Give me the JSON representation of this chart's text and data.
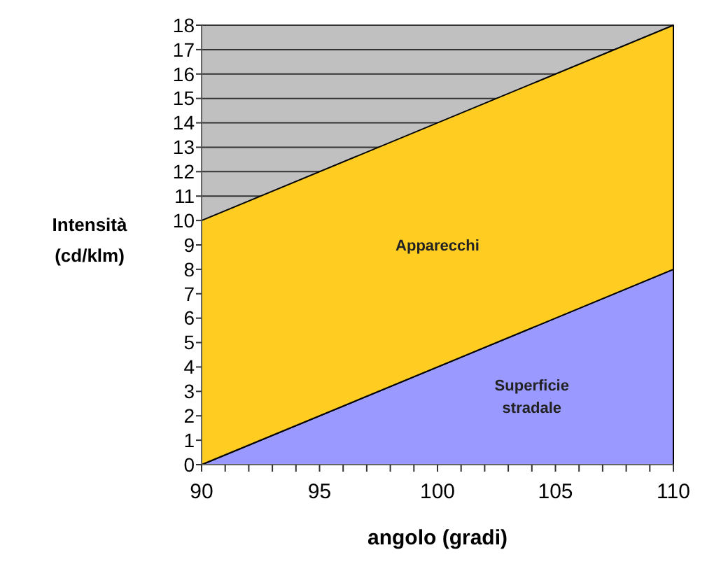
{
  "chart_data": {
    "type": "area",
    "stacked": true,
    "xlabel": "angolo (gradi)",
    "ylabel": "Intensità (cd/klm)",
    "x": [
      90,
      110
    ],
    "series": [
      {
        "name": "Superficie stradale",
        "color": "#9999ff",
        "values": [
          0,
          8
        ]
      },
      {
        "name": "Apparecchi",
        "color": "#ffcc22",
        "values": [
          10,
          10
        ]
      }
    ],
    "xlim": [
      90,
      110
    ],
    "xticks": [
      90,
      {
        "value": 91,
        "label": null
      },
      {
        "value": 92,
        "label": null
      },
      {
        "value": 93,
        "label": null
      },
      {
        "value": 94,
        "label": null
      },
      95,
      {
        "value": 96,
        "label": null
      },
      {
        "value": 97,
        "label": null
      },
      {
        "value": 98,
        "label": null
      },
      {
        "value": 99,
        "label": null
      },
      100,
      {
        "value": 101,
        "label": null
      },
      {
        "value": 102,
        "label": null
      },
      {
        "value": 103,
        "label": null
      },
      {
        "value": 104,
        "label": null
      },
      105,
      {
        "value": 106,
        "label": null
      },
      {
        "value": 107,
        "label": null
      },
      {
        "value": 108,
        "label": null
      },
      {
        "value": 109,
        "label": null
      },
      110
    ],
    "ylim": [
      0,
      18
    ],
    "yticks": [
      0,
      1,
      2,
      3,
      4,
      5,
      6,
      7,
      8,
      9,
      10,
      11,
      12,
      13,
      14,
      15,
      16,
      17,
      18
    ],
    "grid": "y"
  }
}
